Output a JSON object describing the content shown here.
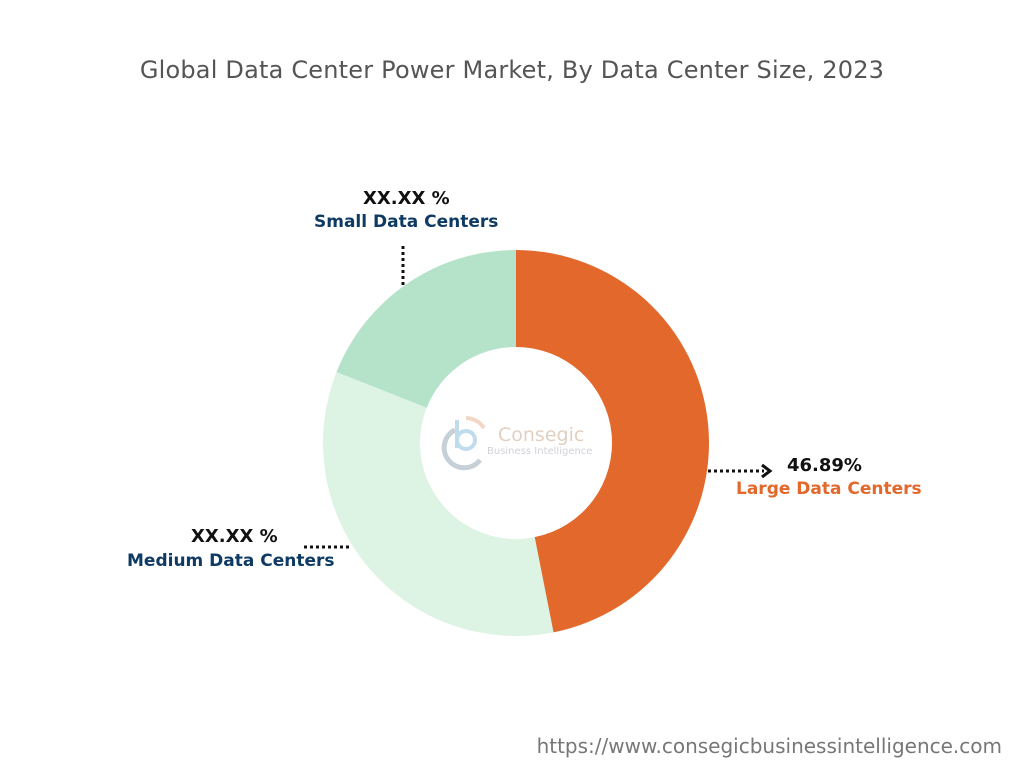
{
  "chart_data": {
    "type": "pie",
    "donut": true,
    "title": "Global Data Center Power Market, By Data Center Size, 2023",
    "slices": [
      {
        "name": "Large Data Centers",
        "label": "46.89%",
        "value": 46.89,
        "color": "#E2682B",
        "name_color": "#E2682B"
      },
      {
        "name": "Medium Data Centers",
        "label": "XX.XX %",
        "value": 34.1,
        "color": "#DDF3E3",
        "name_color": "#0E3A63"
      },
      {
        "name": "Small Data Centers",
        "label": "XX.XX %",
        "value": 19.01,
        "color": "#B5E3CA",
        "name_color": "#0E3A63"
      }
    ]
  },
  "watermark": {
    "brand": "Consegic",
    "tagline": "Business Intelligence"
  },
  "footer": {
    "url": "https://www.consegicbusinessintelligence.com"
  }
}
